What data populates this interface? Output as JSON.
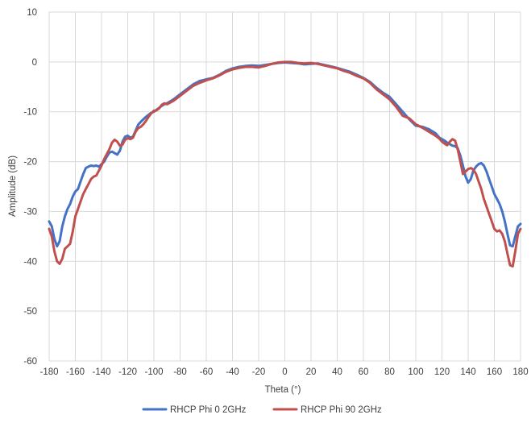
{
  "chart_data": {
    "type": "line",
    "title": "",
    "xlabel": "Theta (°)",
    "ylabel": "Amplitude (dB)",
    "xlim": [
      -180,
      180
    ],
    "ylim": [
      -60,
      10
    ],
    "xticks": [
      -180,
      -160,
      -140,
      -120,
      -100,
      -80,
      -60,
      -40,
      -20,
      0,
      20,
      40,
      60,
      80,
      100,
      120,
      140,
      160,
      180
    ],
    "yticks": [
      -60,
      -50,
      -40,
      -30,
      -20,
      -10,
      0,
      10
    ],
    "grid": {
      "x": true,
      "y": true
    },
    "legend_position": "bottom",
    "series": [
      {
        "name": "RHCP Phi 0 2GHz",
        "color": "#4472C4",
        "points": [
          [
            -180,
            -32
          ],
          [
            -178,
            -33
          ],
          [
            -176,
            -35.5
          ],
          [
            -174,
            -37
          ],
          [
            -172,
            -36
          ],
          [
            -170,
            -33
          ],
          [
            -168,
            -31
          ],
          [
            -166,
            -29.5
          ],
          [
            -164,
            -28.5
          ],
          [
            -162,
            -27
          ],
          [
            -160,
            -26
          ],
          [
            -158,
            -25.5
          ],
          [
            -156,
            -24
          ],
          [
            -154,
            -22.5
          ],
          [
            -152,
            -21.3
          ],
          [
            -150,
            -21
          ],
          [
            -148,
            -20.8
          ],
          [
            -146,
            -20.9
          ],
          [
            -144,
            -20.8
          ],
          [
            -142,
            -21
          ],
          [
            -140,
            -20.5
          ],
          [
            -138,
            -20
          ],
          [
            -136,
            -19
          ],
          [
            -134,
            -18.2
          ],
          [
            -132,
            -18
          ],
          [
            -130,
            -18.3
          ],
          [
            -128,
            -18.6
          ],
          [
            -126,
            -17.8
          ],
          [
            -124,
            -16
          ],
          [
            -122,
            -15
          ],
          [
            -120,
            -14.8
          ],
          [
            -118,
            -15.2
          ],
          [
            -116,
            -15
          ],
          [
            -114,
            -13.8
          ],
          [
            -112,
            -12.6
          ],
          [
            -110,
            -12
          ],
          [
            -108,
            -11.5
          ],
          [
            -106,
            -11
          ],
          [
            -104,
            -10.6
          ],
          [
            -102,
            -10.2
          ],
          [
            -100,
            -10
          ],
          [
            -98,
            -9.6
          ],
          [
            -96,
            -9.2
          ],
          [
            -94,
            -8.8
          ],
          [
            -92,
            -8.5
          ],
          [
            -90,
            -8.3
          ],
          [
            -85,
            -7.5
          ],
          [
            -80,
            -6.5
          ],
          [
            -75,
            -5.5
          ],
          [
            -70,
            -4.5
          ],
          [
            -65,
            -3.8
          ],
          [
            -60,
            -3.5
          ],
          [
            -55,
            -3.2
          ],
          [
            -50,
            -2.6
          ],
          [
            -45,
            -1.8
          ],
          [
            -40,
            -1.3
          ],
          [
            -35,
            -1
          ],
          [
            -30,
            -0.8
          ],
          [
            -25,
            -0.7
          ],
          [
            -20,
            -0.8
          ],
          [
            -15,
            -0.6
          ],
          [
            -10,
            -0.4
          ],
          [
            -5,
            -0.2
          ],
          [
            0,
            -0.1
          ],
          [
            5,
            -0.2
          ],
          [
            10,
            -0.3
          ],
          [
            15,
            -0.5
          ],
          [
            20,
            -0.4
          ],
          [
            25,
            -0.3
          ],
          [
            30,
            -0.6
          ],
          [
            35,
            -0.9
          ],
          [
            40,
            -1.2
          ],
          [
            45,
            -1.6
          ],
          [
            50,
            -2
          ],
          [
            55,
            -2.6
          ],
          [
            60,
            -3.2
          ],
          [
            65,
            -4
          ],
          [
            70,
            -5.2
          ],
          [
            75,
            -6.2
          ],
          [
            80,
            -7
          ],
          [
            85,
            -8.5
          ],
          [
            90,
            -10
          ],
          [
            95,
            -11.5
          ],
          [
            100,
            -12.8
          ],
          [
            105,
            -13
          ],
          [
            110,
            -13.5
          ],
          [
            115,
            -14.3
          ],
          [
            118,
            -15.2
          ],
          [
            120,
            -15.5
          ],
          [
            122,
            -15.8
          ],
          [
            124,
            -16.2
          ],
          [
            126,
            -16.5
          ],
          [
            128,
            -16.8
          ],
          [
            130,
            -16.9
          ],
          [
            132,
            -17.3
          ],
          [
            134,
            -18.8
          ],
          [
            136,
            -20.8
          ],
          [
            138,
            -23
          ],
          [
            140,
            -24.2
          ],
          [
            142,
            -23.5
          ],
          [
            144,
            -21.8
          ],
          [
            146,
            -21
          ],
          [
            148,
            -20.5
          ],
          [
            150,
            -20.3
          ],
          [
            152,
            -20.8
          ],
          [
            154,
            -22
          ],
          [
            156,
            -23.5
          ],
          [
            158,
            -25
          ],
          [
            160,
            -26.5
          ],
          [
            162,
            -27.5
          ],
          [
            164,
            -28.5
          ],
          [
            166,
            -30
          ],
          [
            168,
            -32
          ],
          [
            170,
            -34.5
          ],
          [
            172,
            -36.8
          ],
          [
            174,
            -37
          ],
          [
            176,
            -35
          ],
          [
            178,
            -33
          ],
          [
            180,
            -32.5
          ]
        ]
      },
      {
        "name": "RHCP Phi 90 2GHz",
        "color": "#C0504D",
        "points": [
          [
            -180,
            -33.5
          ],
          [
            -178,
            -35
          ],
          [
            -176,
            -38
          ],
          [
            -174,
            -40
          ],
          [
            -172,
            -40.5
          ],
          [
            -170,
            -39.5
          ],
          [
            -168,
            -37.5
          ],
          [
            -166,
            -37
          ],
          [
            -164,
            -36.5
          ],
          [
            -162,
            -34
          ],
          [
            -160,
            -31
          ],
          [
            -158,
            -29.5
          ],
          [
            -156,
            -28
          ],
          [
            -154,
            -26.5
          ],
          [
            -152,
            -25.5
          ],
          [
            -150,
            -24.5
          ],
          [
            -148,
            -23.5
          ],
          [
            -146,
            -23
          ],
          [
            -144,
            -22.8
          ],
          [
            -142,
            -21.8
          ],
          [
            -140,
            -20.8
          ],
          [
            -138,
            -19.5
          ],
          [
            -136,
            -18.5
          ],
          [
            -134,
            -17.5
          ],
          [
            -132,
            -16.2
          ],
          [
            -130,
            -15.6
          ],
          [
            -128,
            -16
          ],
          [
            -126,
            -16.8
          ],
          [
            -124,
            -16.6
          ],
          [
            -122,
            -15.6
          ],
          [
            -120,
            -15.3
          ],
          [
            -118,
            -15.5
          ],
          [
            -116,
            -15.2
          ],
          [
            -114,
            -14
          ],
          [
            -112,
            -13.3
          ],
          [
            -110,
            -13
          ],
          [
            -108,
            -12.5
          ],
          [
            -106,
            -11.8
          ],
          [
            -104,
            -11
          ],
          [
            -102,
            -10.3
          ],
          [
            -100,
            -9.8
          ],
          [
            -98,
            -9.7
          ],
          [
            -96,
            -9.3
          ],
          [
            -94,
            -8.6
          ],
          [
            -92,
            -8.3
          ],
          [
            -90,
            -8.5
          ],
          [
            -85,
            -7.8
          ],
          [
            -80,
            -6.8
          ],
          [
            -75,
            -5.8
          ],
          [
            -70,
            -4.8
          ],
          [
            -65,
            -4.2
          ],
          [
            -60,
            -3.7
          ],
          [
            -55,
            -3.3
          ],
          [
            -50,
            -2.7
          ],
          [
            -45,
            -2
          ],
          [
            -40,
            -1.5
          ],
          [
            -35,
            -1.2
          ],
          [
            -30,
            -1
          ],
          [
            -25,
            -1
          ],
          [
            -20,
            -1.1
          ],
          [
            -15,
            -0.8
          ],
          [
            -10,
            -0.4
          ],
          [
            -5,
            -0.1
          ],
          [
            0,
            0
          ],
          [
            5,
            0
          ],
          [
            10,
            -0.2
          ],
          [
            15,
            -0.3
          ],
          [
            20,
            -0.2
          ],
          [
            25,
            -0.4
          ],
          [
            30,
            -0.7
          ],
          [
            35,
            -1
          ],
          [
            40,
            -1.3
          ],
          [
            45,
            -1.8
          ],
          [
            50,
            -2.2
          ],
          [
            55,
            -2.8
          ],
          [
            60,
            -3.3
          ],
          [
            65,
            -4.2
          ],
          [
            70,
            -5.5
          ],
          [
            75,
            -6.5
          ],
          [
            80,
            -7.5
          ],
          [
            85,
            -9
          ],
          [
            90,
            -10.8
          ],
          [
            95,
            -11.3
          ],
          [
            100,
            -12.5
          ],
          [
            105,
            -13.2
          ],
          [
            110,
            -14
          ],
          [
            115,
            -14.8
          ],
          [
            118,
            -15.4
          ],
          [
            120,
            -16
          ],
          [
            122,
            -16.4
          ],
          [
            124,
            -16.7
          ],
          [
            126,
            -16
          ],
          [
            128,
            -15.5
          ],
          [
            130,
            -15.8
          ],
          [
            132,
            -17.5
          ],
          [
            134,
            -20
          ],
          [
            136,
            -22.5
          ],
          [
            138,
            -22
          ],
          [
            140,
            -21.5
          ],
          [
            142,
            -21.3
          ],
          [
            144,
            -21.6
          ],
          [
            146,
            -22.5
          ],
          [
            148,
            -24
          ],
          [
            150,
            -25.5
          ],
          [
            152,
            -27.5
          ],
          [
            154,
            -29
          ],
          [
            156,
            -30.5
          ],
          [
            158,
            -32
          ],
          [
            160,
            -33.5
          ],
          [
            162,
            -34
          ],
          [
            164,
            -33.8
          ],
          [
            166,
            -34.5
          ],
          [
            168,
            -36
          ],
          [
            170,
            -38.5
          ],
          [
            172,
            -40.8
          ],
          [
            174,
            -41
          ],
          [
            176,
            -38
          ],
          [
            178,
            -34.5
          ],
          [
            180,
            -33.5
          ]
        ]
      }
    ]
  }
}
